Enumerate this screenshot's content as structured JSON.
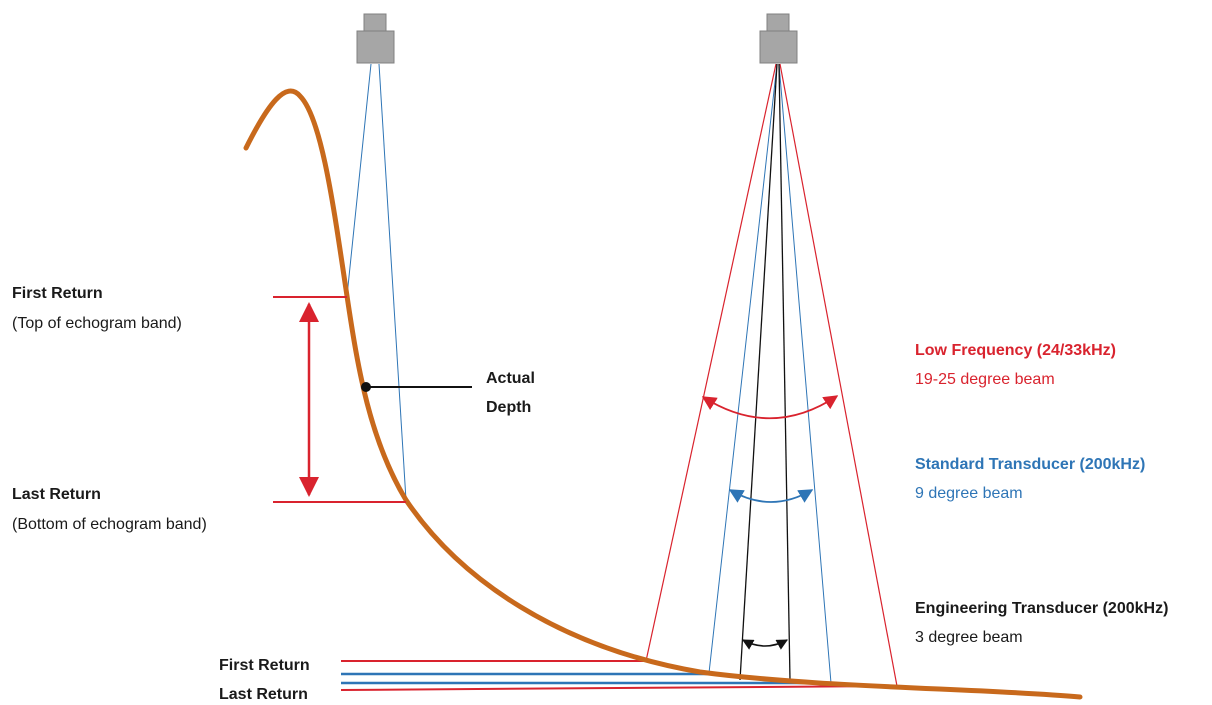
{
  "labels": {
    "left_first_return_title": "First Return",
    "left_first_return_sub": "(Top of echogram band)",
    "left_last_return_title": "Last Return",
    "left_last_return_sub": "(Bottom of echogram band)",
    "actual_depth_line1": "Actual",
    "actual_depth_line2": "Depth",
    "bottom_first_return": "First Return",
    "bottom_last_return": "Last Return"
  },
  "legend": {
    "low_frequency": {
      "title": "Low Frequency (24/33kHz)",
      "sub": "19-25 degree beam",
      "color": "#d9232e"
    },
    "standard": {
      "title": "Standard Transducer (200kHz)",
      "sub": "9 degree beam",
      "color": "#2e75b6"
    },
    "engineering": {
      "title": "Engineering Transducer (200kHz)",
      "sub": "3 degree beam",
      "color": "#1a1a1a"
    }
  },
  "colors": {
    "seabed": "#c8691c",
    "red": "#d9232e",
    "blue": "#2e75b6",
    "black": "#111111",
    "transducer_body": "#a6a6a6",
    "transducer_edge": "#808080"
  },
  "icons": {
    "left_transducer": "transducer-icon",
    "right_transducer": "transducer-icon"
  }
}
